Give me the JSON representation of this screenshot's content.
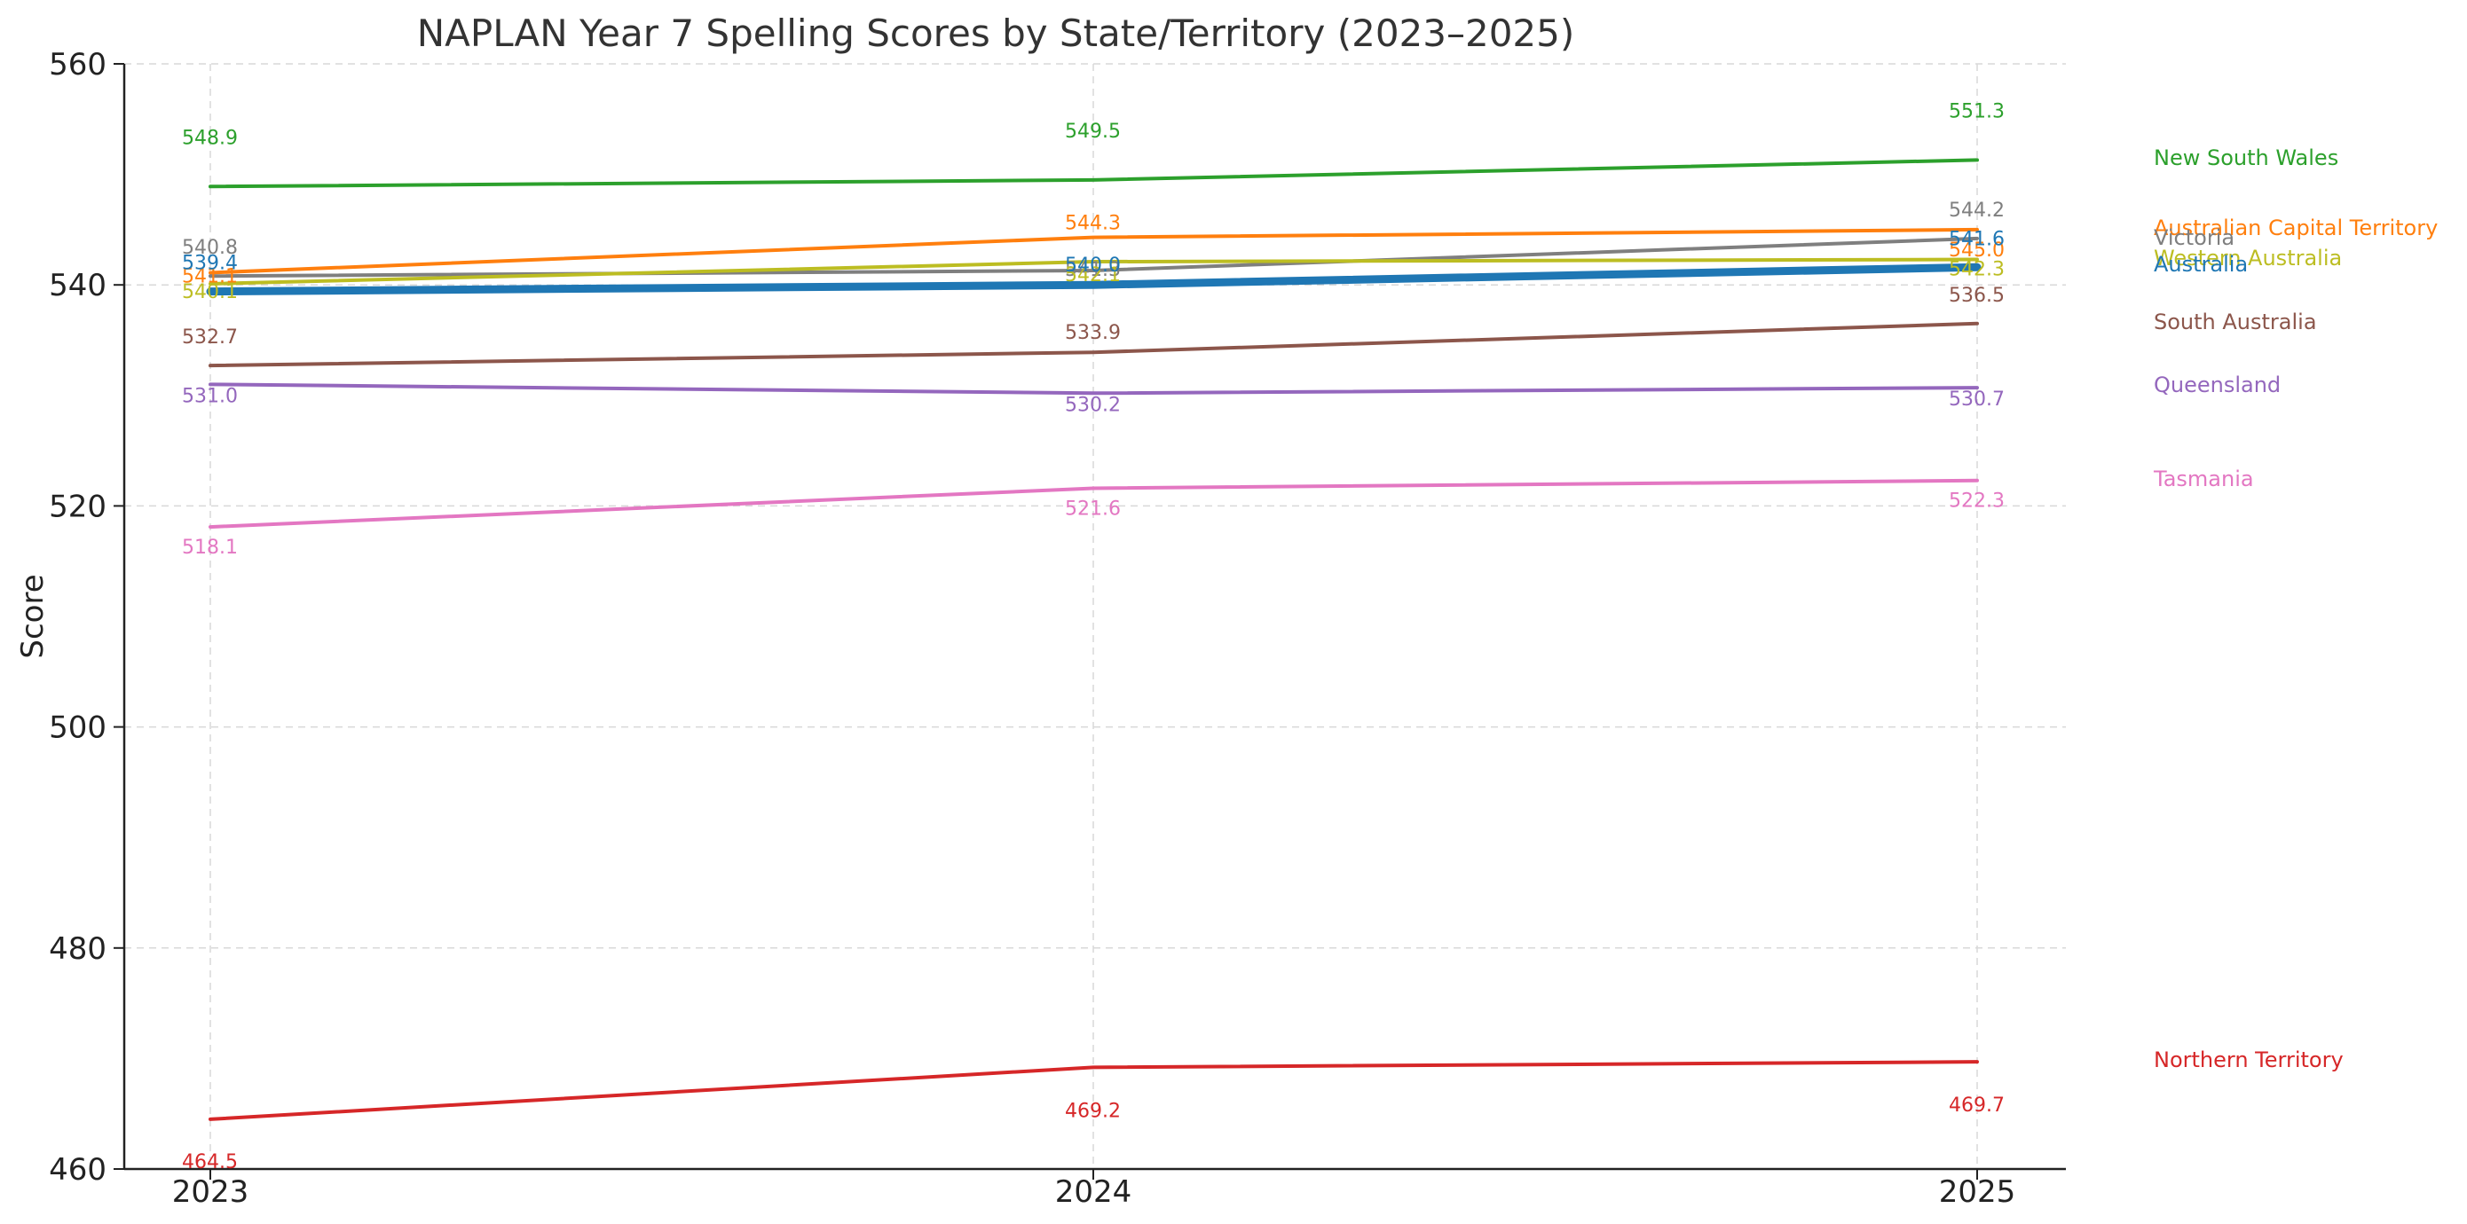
{
  "chart_data": {
    "type": "line",
    "title": "NAPLAN Year 7 Spelling Scores by State/Territory (2023–2025)",
    "xlabel": "",
    "ylabel": "Score",
    "x": [
      "2023",
      "2024",
      "2025"
    ],
    "ylim": [
      460,
      560
    ],
    "yticks": [
      "460",
      "480",
      "500",
      "520",
      "540",
      "560"
    ],
    "grid": true,
    "legend": "right (inline labels at line ends)",
    "series": [
      {
        "name": "New South Wales",
        "values": [
          548.9,
          549.5,
          551.3
        ],
        "labels": [
          "548.9",
          "549.5",
          "551.3"
        ],
        "color": "#2ca02c",
        "emphasis": false
      },
      {
        "name": "Australian Capital Territory",
        "values": [
          541.1,
          544.3,
          545.0
        ],
        "labels": [
          "541.1",
          "544.3",
          "545.0"
        ],
        "color": "#ff7f0e",
        "emphasis": false
      },
      {
        "name": "Victoria",
        "values": [
          540.8,
          541.3,
          544.2
        ],
        "labels": [
          "540.8",
          "541.3",
          "544.2"
        ],
        "color": "#7f7f7f",
        "emphasis": false
      },
      {
        "name": "Western Australia",
        "values": [
          540.1,
          542.1,
          542.3
        ],
        "labels": [
          "540.1",
          "542.1",
          "542.3"
        ],
        "color": "#bcbd22",
        "emphasis": false
      },
      {
        "name": "Australia",
        "values": [
          539.4,
          540.0,
          541.6
        ],
        "labels": [
          "539.4",
          "540.0",
          "541.6"
        ],
        "color": "#1f77b4",
        "emphasis": true
      },
      {
        "name": "South Australia",
        "values": [
          532.7,
          533.9,
          536.5
        ],
        "labels": [
          "532.7",
          "533.9",
          "536.5"
        ],
        "color": "#8c564b",
        "emphasis": false
      },
      {
        "name": "Queensland",
        "values": [
          531.0,
          530.2,
          530.7
        ],
        "labels": [
          "531.0",
          "530.2",
          "530.7"
        ],
        "color": "#9467bd",
        "emphasis": false
      },
      {
        "name": "Tasmania",
        "values": [
          518.1,
          521.6,
          522.3
        ],
        "labels": [
          "518.1",
          "521.6",
          "522.3"
        ],
        "color": "#e377c2",
        "emphasis": false
      },
      {
        "name": "Northern Territory",
        "values": [
          464.5,
          469.2,
          469.7
        ],
        "labels": [
          "464.5",
          "469.2",
          "469.7"
        ],
        "color": "#d62728",
        "emphasis": false
      }
    ]
  }
}
